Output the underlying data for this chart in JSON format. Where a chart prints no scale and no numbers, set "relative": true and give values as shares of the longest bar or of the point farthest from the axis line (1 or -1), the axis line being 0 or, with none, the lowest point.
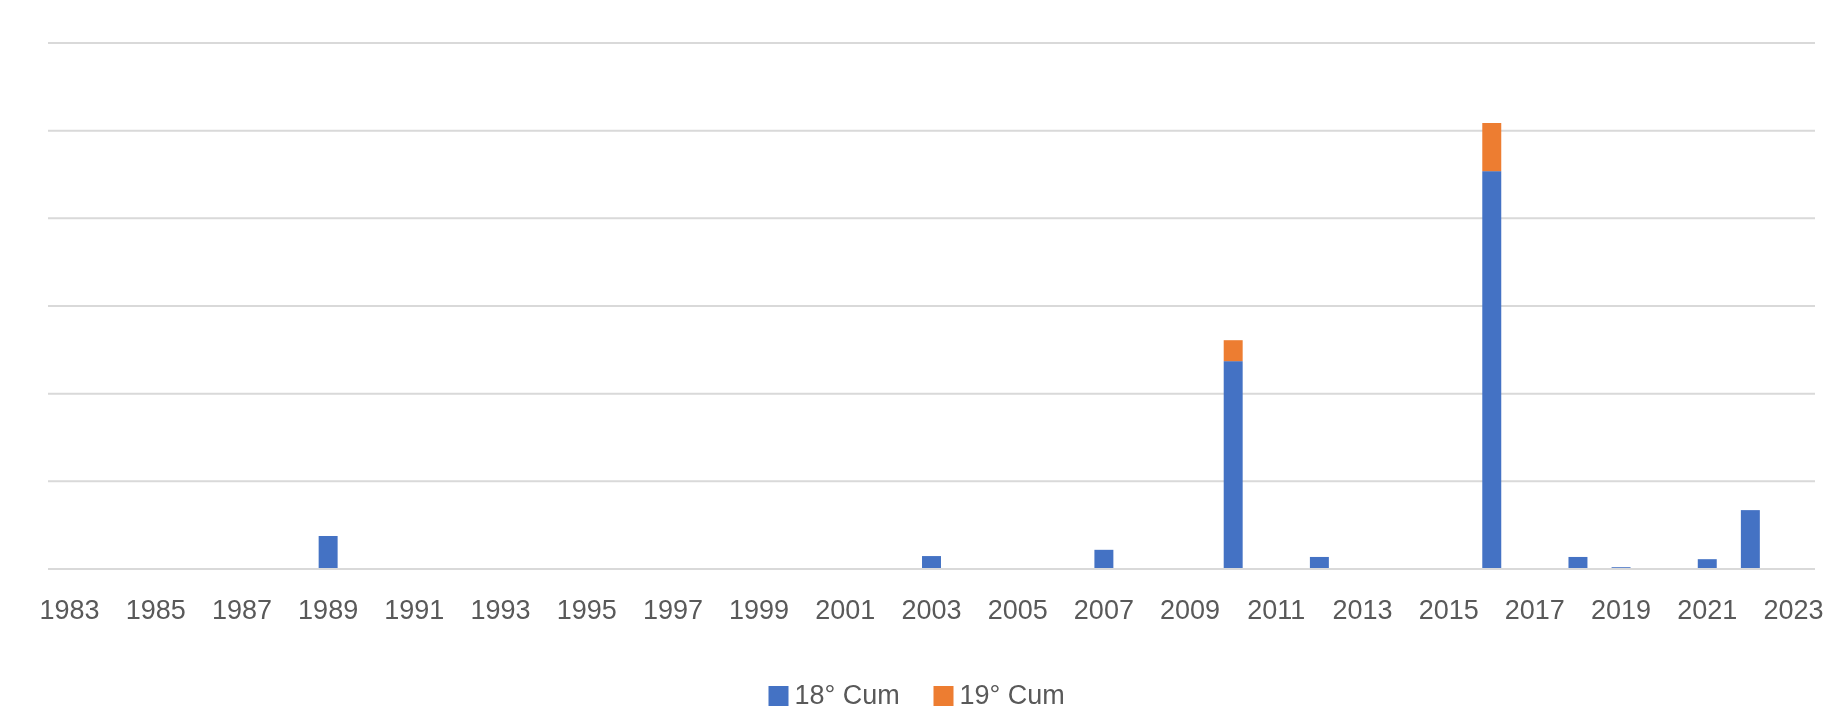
{
  "chart_data": {
    "type": "bar",
    "stacked": true,
    "relative": true,
    "grid": true,
    "legend": "bottom",
    "categories": [
      "1983",
      null,
      "1985",
      null,
      "1987",
      null,
      "1989",
      null,
      "1991",
      null,
      "1993",
      null,
      "1995",
      null,
      "1997",
      null,
      "1999",
      null,
      "2001",
      null,
      "2003",
      null,
      "2005",
      null,
      "2007",
      null,
      "2009",
      null,
      "2011",
      null,
      "2013",
      null,
      "2015",
      null,
      "2017",
      null,
      "2019",
      null,
      "2021",
      null,
      "2023"
    ],
    "series": [
      {
        "name": "18° Cum",
        "color": "#4472c4",
        "values": [
          null,
          null,
          null,
          null,
          null,
          null,
          0.074,
          null,
          null,
          null,
          null,
          null,
          null,
          null,
          null,
          null,
          null,
          null,
          null,
          null,
          0.029,
          null,
          null,
          null,
          0.043,
          null,
          null,
          0.466,
          null,
          0.027,
          null,
          null,
          null,
          0.892,
          null,
          0.027,
          0.004,
          null,
          0.022,
          0.132,
          null
        ]
      },
      {
        "name": "19° Cum",
        "color": "#ed7d31",
        "values": [
          null,
          null,
          null,
          null,
          null,
          null,
          null,
          null,
          null,
          null,
          null,
          null,
          null,
          null,
          null,
          null,
          null,
          null,
          null,
          null,
          null,
          null,
          null,
          null,
          null,
          null,
          null,
          0.047,
          null,
          null,
          null,
          null,
          null,
          0.108,
          null,
          null,
          null,
          null,
          null,
          null,
          null
        ]
      }
    ]
  }
}
